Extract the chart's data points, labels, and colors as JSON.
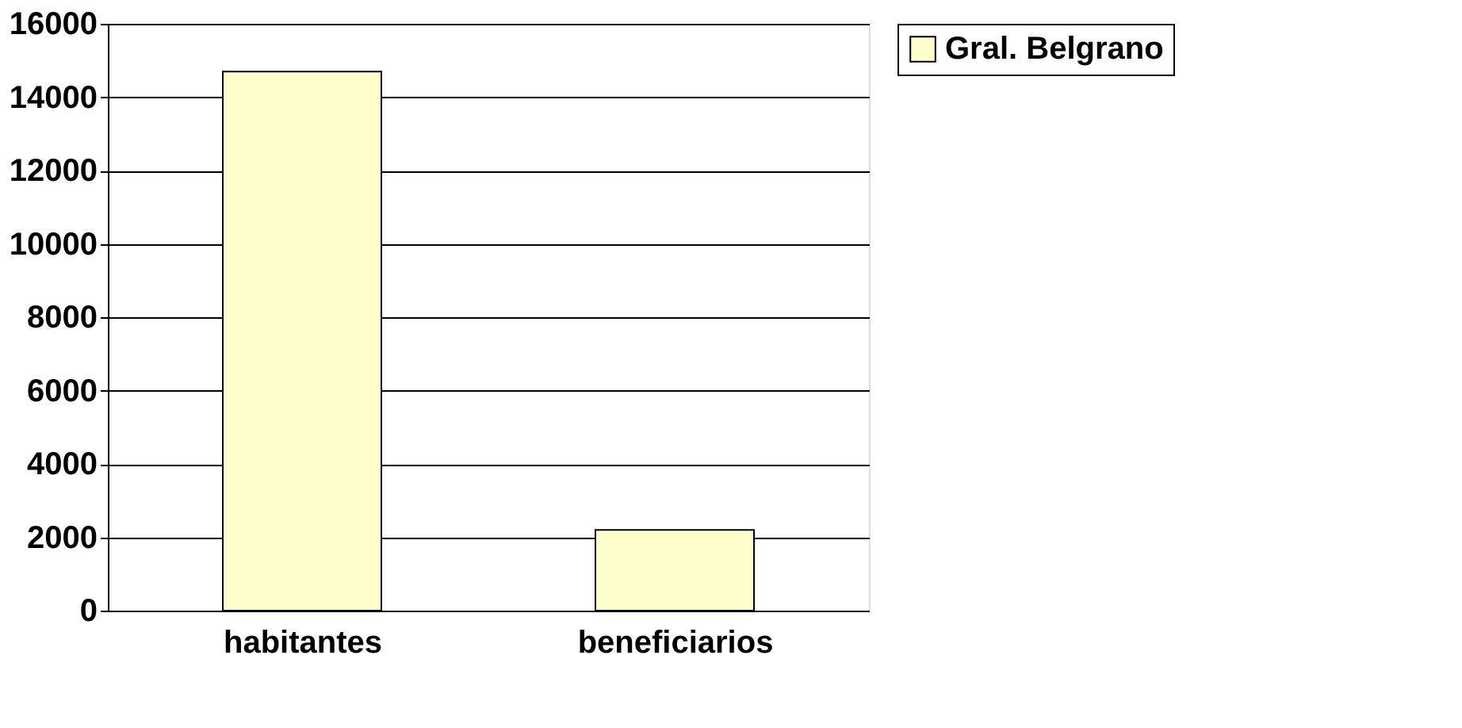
{
  "chart_data": {
    "type": "bar",
    "categories": [
      "habitantes",
      "beneficiarios"
    ],
    "series": [
      {
        "name": "Gral. Belgrano",
        "color": "#ffffcc",
        "values": [
          14700,
          2200
        ]
      }
    ],
    "ylim": [
      0,
      16000
    ],
    "yticks": [
      0,
      2000,
      4000,
      6000,
      8000,
      10000,
      12000,
      14000,
      16000
    ],
    "grid": "y",
    "legend": "right"
  }
}
